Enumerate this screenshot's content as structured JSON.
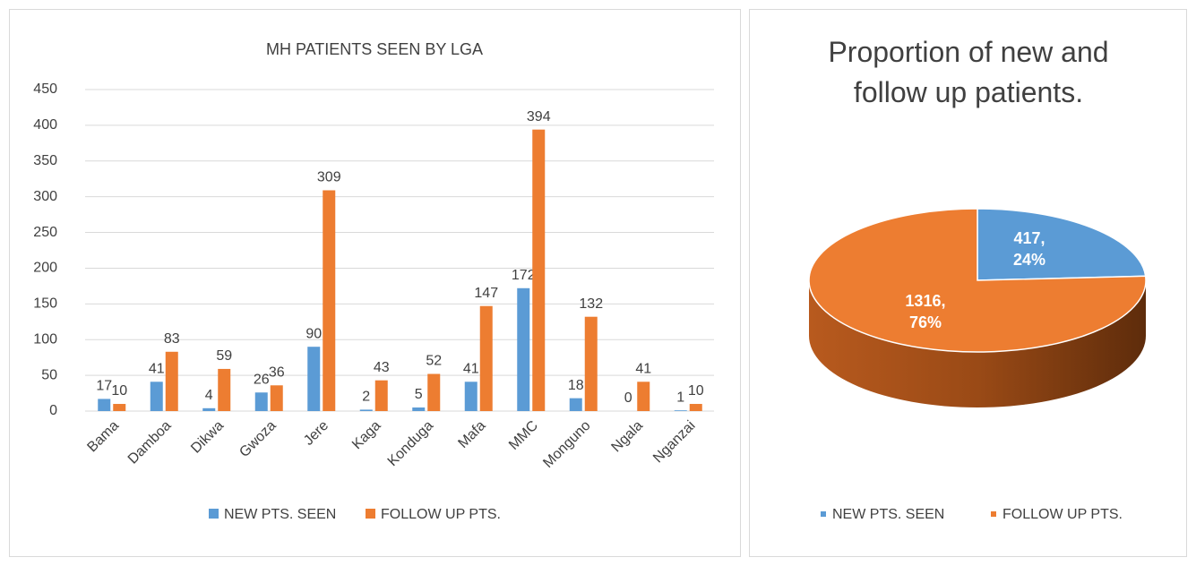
{
  "chart_data": [
    {
      "type": "bar",
      "title": "MH PATIENTS SEEN BY LGA",
      "categories": [
        "Bama",
        "Damboa",
        "Dikwa",
        "Gwoza",
        "Jere",
        "Kaga",
        "Konduga",
        "Mafa",
        "MMC",
        "Monguno",
        "Ngala",
        "Nganzai"
      ],
      "series": [
        {
          "name": "NEW PTS. SEEN",
          "color": "#5b9bd5",
          "values": [
            17,
            41,
            4,
            26,
            90,
            2,
            5,
            41,
            172,
            18,
            0,
            1
          ]
        },
        {
          "name": "FOLLOW UP PTS.",
          "color": "#ed7d31",
          "values": [
            10,
            83,
            59,
            36,
            309,
            43,
            52,
            147,
            394,
            132,
            41,
            10
          ]
        }
      ],
      "ylim": [
        0,
        450
      ],
      "yticks": [
        0,
        50,
        100,
        150,
        200,
        250,
        300,
        350,
        400,
        450
      ],
      "grid": true,
      "legend": "bottom"
    },
    {
      "type": "pie",
      "title": "Proportion of new and follow up patients.",
      "categories": [
        "NEW PTS. SEEN",
        "FOLLOW UP PTS."
      ],
      "values": [
        417,
        1316
      ],
      "value_labels": [
        "417, 24%",
        "1316, 76%"
      ],
      "colors": [
        "#5b9bd5",
        "#ed7d31"
      ],
      "legend": "bottom"
    }
  ]
}
